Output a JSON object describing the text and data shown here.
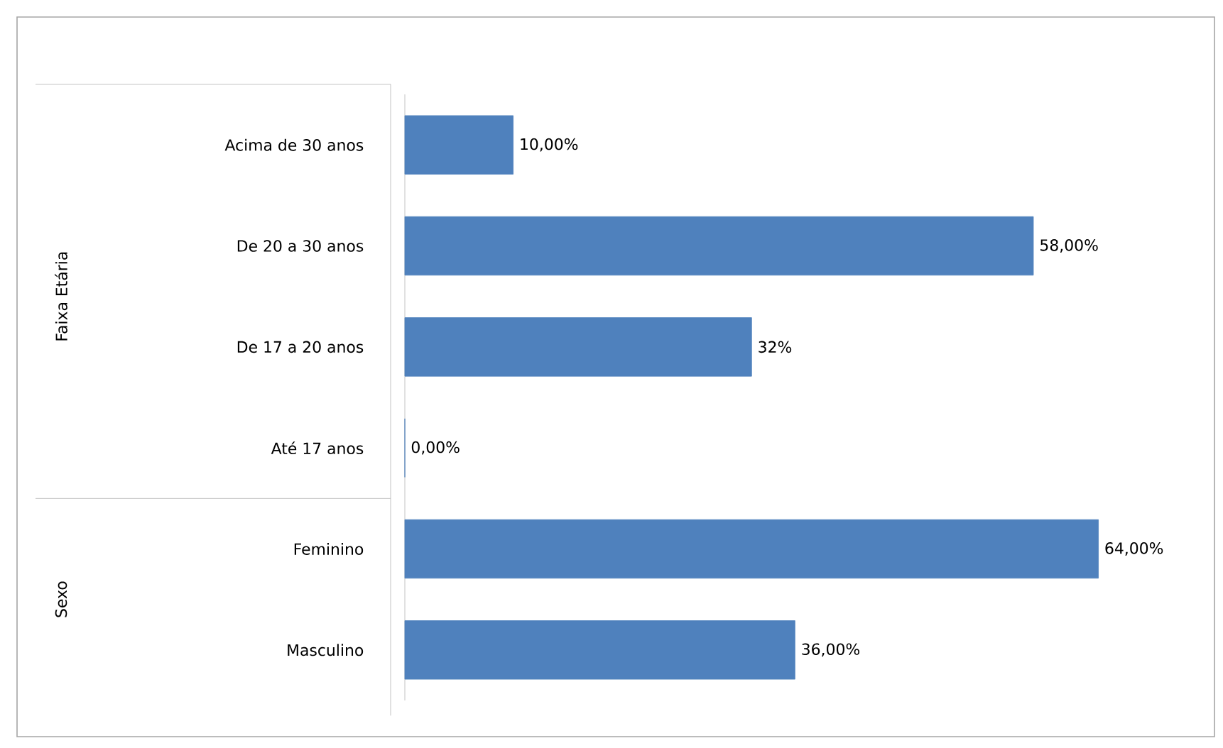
{
  "chart_data": {
    "type": "bar",
    "orientation": "horizontal",
    "categories": [
      "Acima de 30 anos",
      "De 20 a 30 anos",
      "De 17 a 20 anos",
      "Até 17 anos",
      "Feminino",
      "Masculino"
    ],
    "values": [
      10,
      58,
      32,
      0,
      64,
      36
    ],
    "value_labels": [
      "10,00%",
      "58,00%",
      "32%",
      "0,00%",
      "64,00%",
      "36,00%"
    ],
    "color": "#4f81bd",
    "annotations": [
      "Faixa Etária",
      "Sexo"
    ]
  }
}
